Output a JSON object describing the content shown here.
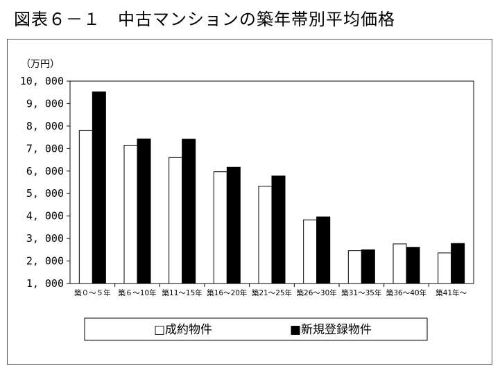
{
  "title": "図表６－１　中古マンションの築年帯別平均価格",
  "chart_data": {
    "type": "bar",
    "ylabel": "（万円）",
    "ylim": [
      1000,
      10000
    ],
    "yticks": [
      1000,
      2000,
      3000,
      4000,
      5000,
      6000,
      7000,
      8000,
      9000,
      10000
    ],
    "ytick_labels": [
      "1, 000",
      "2, 000",
      "3, 000",
      "4, 000",
      "5, 000",
      "6, 000",
      "7, 000",
      "8, 000",
      "9, 000",
      "10, 000"
    ],
    "categories": [
      "築０～５年",
      "築６～10年",
      "築11～15年",
      "築16～20年",
      "築21～25年",
      "築26～30年",
      "築31～35年",
      "築36～40年",
      "築41年～"
    ],
    "series": [
      {
        "name": "成約物件",
        "color": "#ffffff",
        "values": [
          7800,
          7150,
          6600,
          5970,
          5330,
          3830,
          2460,
          2760,
          2360
        ]
      },
      {
        "name": "新規登録物件",
        "color": "#000000",
        "values": [
          9520,
          7430,
          7420,
          6170,
          5780,
          3960,
          2500,
          2610,
          2780
        ]
      }
    ],
    "legend": {
      "placement": "bottom",
      "items": [
        {
          "marker": "□",
          "label": "成約物件"
        },
        {
          "marker": "■",
          "label": "新規登録物件"
        }
      ]
    },
    "grid": false
  }
}
